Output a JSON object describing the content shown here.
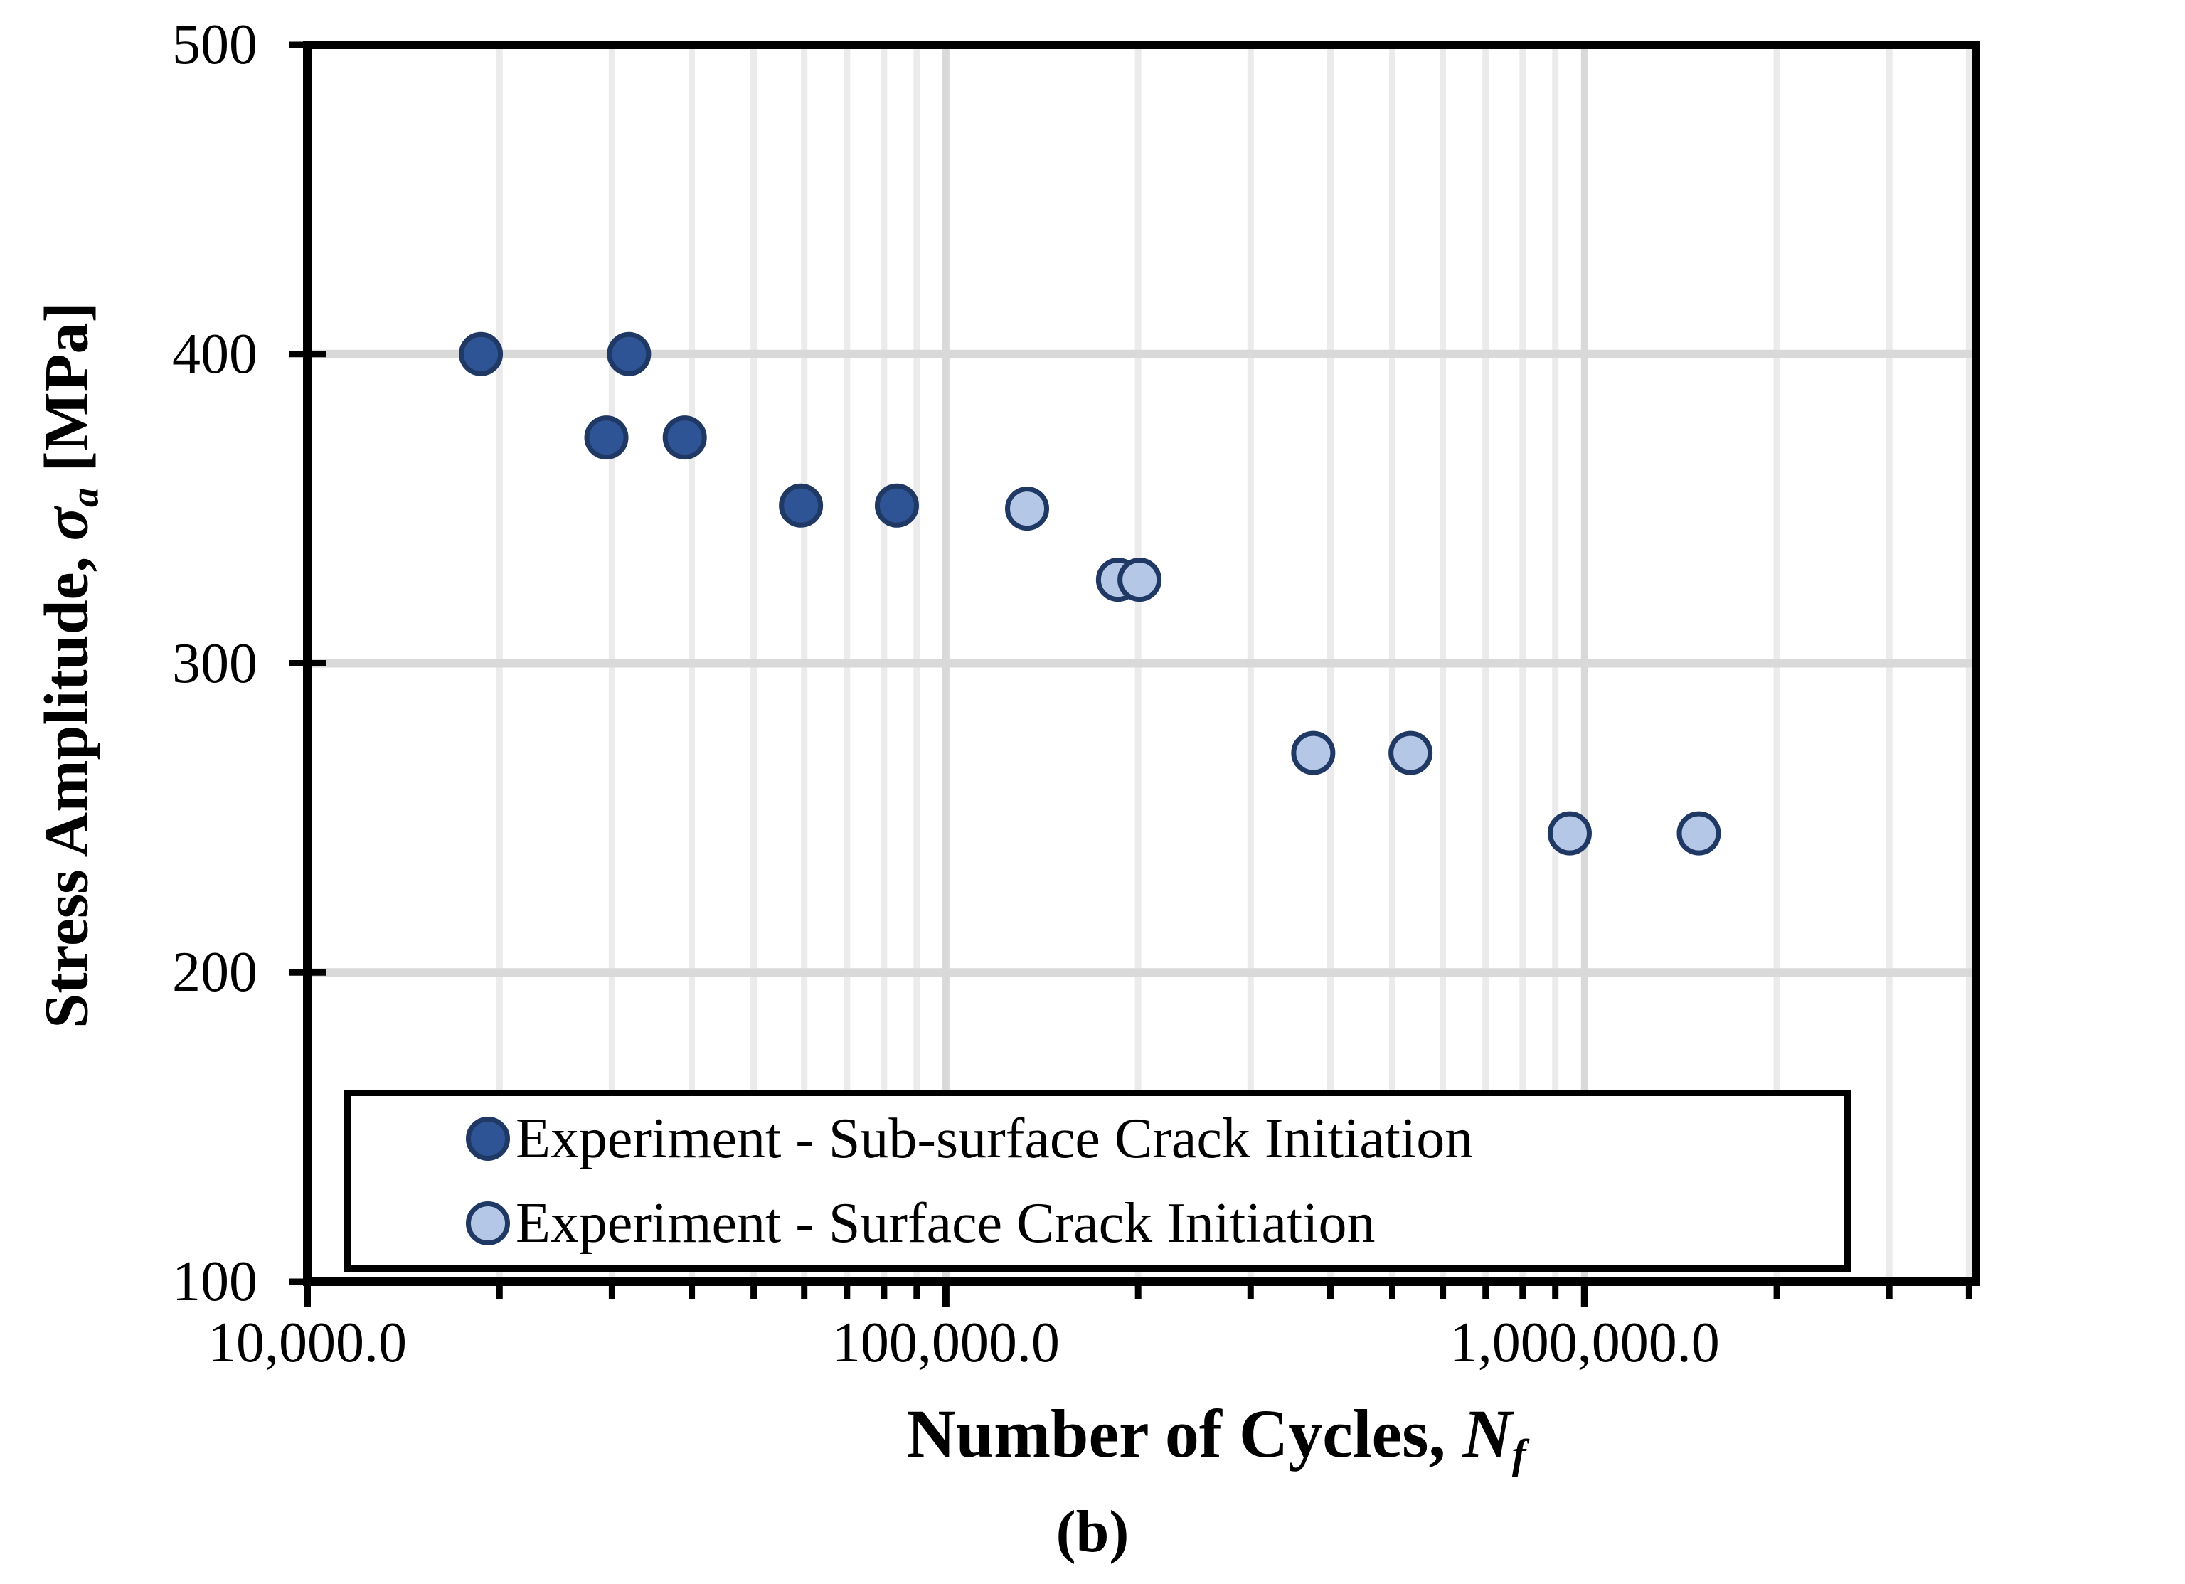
{
  "caption": "(b)",
  "chart_data": {
    "type": "scatter",
    "title": "",
    "x_axis": {
      "label_pre": "Number of Cycles, ",
      "label_sym": "N",
      "label_sub": "f",
      "scale": "log",
      "min": 10000,
      "max": 4100000,
      "major_ticks": [
        10000,
        100000,
        1000000
      ],
      "tick_labels": [
        "10,000.0",
        "100,000.0",
        "1,000,000.0"
      ],
      "minor_tick_multipliers": [
        2,
        3,
        4,
        5,
        6,
        7,
        8,
        9
      ],
      "grid": "minor-and-major"
    },
    "y_axis": {
      "label_pre": "Stress Amplitude, ",
      "label_sym": "σ",
      "label_sub": "a",
      "label_post": " [MPa]",
      "scale": "linear",
      "min": 100,
      "max": 500,
      "major_step": 100,
      "tick_labels": [
        "500",
        "400",
        "300",
        "200",
        "100"
      ],
      "gridlines": [
        200,
        300,
        400
      ],
      "grid": "major"
    },
    "legend_position": "inside-bottom-left",
    "series": [
      {
        "name": "Experiment - Sub-surface Crack Initiation",
        "marker": "circle",
        "fill": "#2F5496",
        "stroke": "#1F3864",
        "points": [
          {
            "N": 18700,
            "sigma": 400
          },
          {
            "N": 31900,
            "sigma": 400
          },
          {
            "N": 29400,
            "sigma": 373
          },
          {
            "N": 39000,
            "sigma": 373
          },
          {
            "N": 59300,
            "sigma": 351
          },
          {
            "N": 83800,
            "sigma": 351
          }
        ]
      },
      {
        "name": "Experiment - Surface Crack Initiation",
        "marker": "circle",
        "fill": "#B4C7E7",
        "stroke": "#1F3864",
        "points": [
          {
            "N": 134000,
            "sigma": 350
          },
          {
            "N": 186000,
            "sigma": 327
          },
          {
            "N": 201000,
            "sigma": 327
          },
          {
            "N": 376000,
            "sigma": 271
          },
          {
            "N": 534000,
            "sigma": 271
          },
          {
            "N": 948000,
            "sigma": 245
          },
          {
            "N": 1510000,
            "sigma": 245
          }
        ]
      }
    ],
    "colors": {
      "axis": "#000000",
      "grid_major": "#D9D9D9",
      "grid_minor": "#EBEBEB",
      "background": "#FFFFFF"
    }
  }
}
